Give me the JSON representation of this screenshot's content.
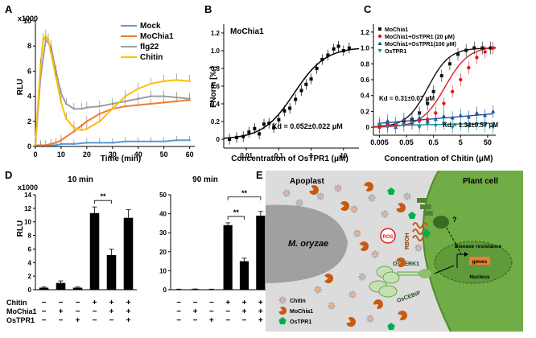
{
  "panel_letters": [
    "A",
    "B",
    "C",
    "D",
    "E"
  ],
  "chart_data": [
    {
      "panel": "A",
      "type": "line",
      "title": "",
      "xlabel": "Time (min)",
      "ylabel": "RLU",
      "y_multiplier": "x1000",
      "xlim": [
        0,
        62
      ],
      "ylim": [
        0,
        10
      ],
      "xticks": [
        "0",
        "10",
        "20",
        "30",
        "40",
        "50",
        "60"
      ],
      "yticks": [
        "0",
        "2",
        "4",
        "6",
        "8",
        "10"
      ],
      "legend_position": "top-right",
      "series": [
        {
          "name": "Mock",
          "color": "#5b9bd5",
          "x": [
            0,
            2,
            4,
            6,
            8,
            10,
            15,
            20,
            25,
            30,
            35,
            40,
            45,
            50,
            55,
            60
          ],
          "y": [
            0.1,
            0.1,
            0.1,
            0.1,
            0.1,
            0.2,
            0.2,
            0.3,
            0.3,
            0.3,
            0.4,
            0.4,
            0.4,
            0.4,
            0.5,
            0.5
          ]
        },
        {
          "name": "MoChia1",
          "color": "#ed7d31",
          "x": [
            0,
            2,
            4,
            6,
            8,
            10,
            15,
            20,
            25,
            30,
            35,
            40,
            45,
            50,
            55,
            60
          ],
          "y": [
            0.1,
            0.1,
            0.1,
            0.2,
            0.3,
            0.5,
            1.2,
            2.0,
            2.6,
            3.0,
            3.2,
            3.3,
            3.4,
            3.5,
            3.6,
            3.7
          ]
        },
        {
          "name": "flg22",
          "color": "#9e9e9e",
          "x": [
            0,
            2,
            4,
            6,
            8,
            10,
            12,
            15,
            18,
            20,
            25,
            30,
            35,
            40,
            45,
            50,
            55,
            60
          ],
          "y": [
            0.2,
            5.5,
            8.5,
            8.0,
            6.0,
            4.2,
            3.4,
            3.0,
            3.0,
            3.1,
            3.2,
            3.4,
            3.6,
            3.8,
            4.0,
            4.0,
            3.9,
            3.8
          ]
        },
        {
          "name": "Chitin",
          "color": "#ffc000",
          "x": [
            0,
            2,
            3,
            4,
            5,
            6,
            8,
            10,
            12,
            15,
            18,
            20,
            25,
            30,
            35,
            40,
            45,
            50,
            55,
            60
          ],
          "y": [
            0.2,
            6.5,
            8.5,
            8.8,
            8.5,
            7.5,
            5.5,
            3.5,
            2.2,
            1.5,
            1.3,
            1.4,
            2.0,
            3.0,
            4.0,
            4.6,
            5.0,
            5.2,
            5.3,
            5.2
          ]
        }
      ]
    },
    {
      "panel": "B",
      "type": "scatter",
      "title": "MoChia1",
      "xlabel": "Concentration of OsTPR1 (μM)",
      "ylabel": "FNorm [‰]",
      "xscale": "log",
      "xlim": [
        0.002,
        30
      ],
      "ylim": [
        -0.1,
        1.3
      ],
      "xticks": [
        "0.01",
        "0.1",
        "1",
        "10"
      ],
      "yticks": [
        "0",
        "0.2",
        "0.4",
        "0.6",
        "0.8",
        "1.0",
        "1.2"
      ],
      "annotation": "Kd = 0.052±0.022 μM",
      "points": {
        "x": [
          0.003,
          0.005,
          0.008,
          0.012,
          0.018,
          0.025,
          0.035,
          0.05,
          0.07,
          0.1,
          0.15,
          0.22,
          0.33,
          0.5,
          0.7,
          1.0,
          1.5,
          2.2,
          3.3,
          5,
          7,
          10,
          15
        ],
        "y": [
          0.0,
          0.02,
          0.03,
          0.08,
          0.12,
          0.06,
          0.17,
          0.18,
          0.13,
          0.22,
          0.32,
          0.35,
          0.45,
          0.55,
          0.62,
          0.68,
          0.8,
          0.9,
          0.95,
          1.02,
          1.05,
          1.0,
          1.03
        ]
      },
      "fit": "sigmoid"
    },
    {
      "panel": "C",
      "type": "scatter",
      "title": "",
      "xlabel": "Concentration of Chitin (μM)",
      "xscale": "log",
      "xlim": [
        0.003,
        100
      ],
      "ylim": [
        -0.1,
        1.3
      ],
      "xticks": [
        "0.005",
        "0.05",
        "0.5",
        "5",
        "50"
      ],
      "yticks": [
        "0",
        "0.2",
        "0.4",
        "0.6",
        "0.8",
        "1.0",
        "1.2"
      ],
      "annotations": [
        "Kd = 0.31±0.07 μM",
        "Kd = 1.34±0.57 μM"
      ],
      "legend_position": "top-left",
      "series": [
        {
          "name": "MoChia1",
          "color": "#111111",
          "marker": "square",
          "x": [
            0.005,
            0.01,
            0.02,
            0.04,
            0.08,
            0.15,
            0.3,
            0.5,
            1,
            2,
            4,
            8,
            16,
            32,
            64
          ],
          "y": [
            0.01,
            0.03,
            0.05,
            0.08,
            0.1,
            0.18,
            0.3,
            0.45,
            0.65,
            0.8,
            0.92,
            0.97,
            1.0,
            1.0,
            1.0
          ]
        },
        {
          "name": "MoChia1+OsTPR1  (20 μM)",
          "color": "#e31a1c",
          "marker": "circle",
          "x": [
            0.005,
            0.01,
            0.02,
            0.04,
            0.08,
            0.15,
            0.3,
            0.6,
            1.2,
            2.5,
            5,
            10,
            20,
            40,
            80
          ],
          "y": [
            0.0,
            0.02,
            0.03,
            0.04,
            0.05,
            0.08,
            0.1,
            0.18,
            0.3,
            0.45,
            0.6,
            0.75,
            0.88,
            0.95,
            1.0
          ]
        },
        {
          "name": "MoChia1+OsTPR1(100  μM)",
          "color": "#1f4e9c",
          "marker": "triangle",
          "x": [
            0.005,
            0.01,
            0.02,
            0.04,
            0.08,
            0.15,
            0.3,
            0.6,
            1.2,
            2.5,
            5,
            10,
            20,
            40,
            80
          ],
          "y": [
            0.05,
            0.08,
            0.0,
            0.1,
            0.06,
            0.12,
            0.08,
            0.1,
            0.14,
            0.12,
            0.15,
            0.13,
            0.18,
            0.15,
            0.2
          ]
        },
        {
          "name": "OsTPR1",
          "color": "#1a8a9a",
          "marker": "triangle-down",
          "x": [
            0.005,
            0.01,
            0.02,
            0.04,
            0.08,
            0.15,
            0.3,
            0.6,
            1.2,
            2.5,
            5,
            10,
            20,
            40,
            80
          ],
          "y": [
            0.03,
            0.0,
            0.05,
            0.02,
            0.06,
            0.0,
            0.04,
            0.02,
            0.05,
            0.0,
            0.03,
            0.01,
            0.04,
            0.02,
            0.0
          ]
        }
      ]
    },
    {
      "panel": "D",
      "type": "bar",
      "ylabel": "RLU",
      "y_multiplier": "x1000",
      "conditions_labels": [
        "Chitin",
        "MoChia1",
        "OsTPR1"
      ],
      "conditions": [
        [
          "−",
          "−",
          "−",
          "+",
          "+",
          "+"
        ],
        [
          "−",
          "+",
          "−",
          "−",
          "+",
          "+"
        ],
        [
          "−",
          "−",
          "+",
          "−",
          "−",
          "+"
        ]
      ],
      "subplots": [
        {
          "title": "10 min",
          "ylim": [
            0,
            14
          ],
          "yticks": [
            "0",
            "2",
            "4",
            "6",
            "8",
            "10",
            "12",
            "14"
          ],
          "values": [
            0.3,
            1.0,
            0.3,
            11.3,
            5.1,
            10.6
          ],
          "errors": [
            0.1,
            0.3,
            0.1,
            0.9,
            0.9,
            1.2
          ],
          "significance": [
            {
              "between": [
                3,
                4
              ],
              "label": "**"
            }
          ]
        },
        {
          "title": "90 min",
          "ylim": [
            0,
            50
          ],
          "yticks": [
            "0",
            "10",
            "20",
            "30",
            "40",
            "50"
          ],
          "values": [
            0.2,
            0.3,
            0.2,
            34,
            15,
            39
          ],
          "errors": [
            0.1,
            0.1,
            0.1,
            1.2,
            1.6,
            2.2
          ],
          "significance": [
            {
              "between": [
                3,
                4
              ],
              "label": "**"
            },
            {
              "between": [
                3,
                5
              ],
              "label": "**"
            }
          ]
        }
      ]
    }
  ],
  "diagram": {
    "apoplast_label": "Apoplast",
    "plant_cell_label": "Plant cell",
    "pathogen_label": "M. oryzae",
    "ros_label": "ROS",
    "rboh_label": "RBOH",
    "oscerk1_label": "OsCERK1",
    "oscebip_label": "OsCEBiP",
    "nucleus_label": "Nucleus",
    "genes_label": "genes",
    "disease_label": "Disease resistance",
    "question_mark": "?",
    "legend": {
      "chitin": "Chitin",
      "mochia1": "MoChia1",
      "ostpr1": "OsTPR1"
    },
    "colors": {
      "cell": "#70ad47",
      "apoplast": "#dcdcdc",
      "pathogen": "#a0a0a0",
      "chitin": "#f4b183",
      "mochia1": "#c55a11",
      "ostpr1": "#00b050"
    }
  }
}
